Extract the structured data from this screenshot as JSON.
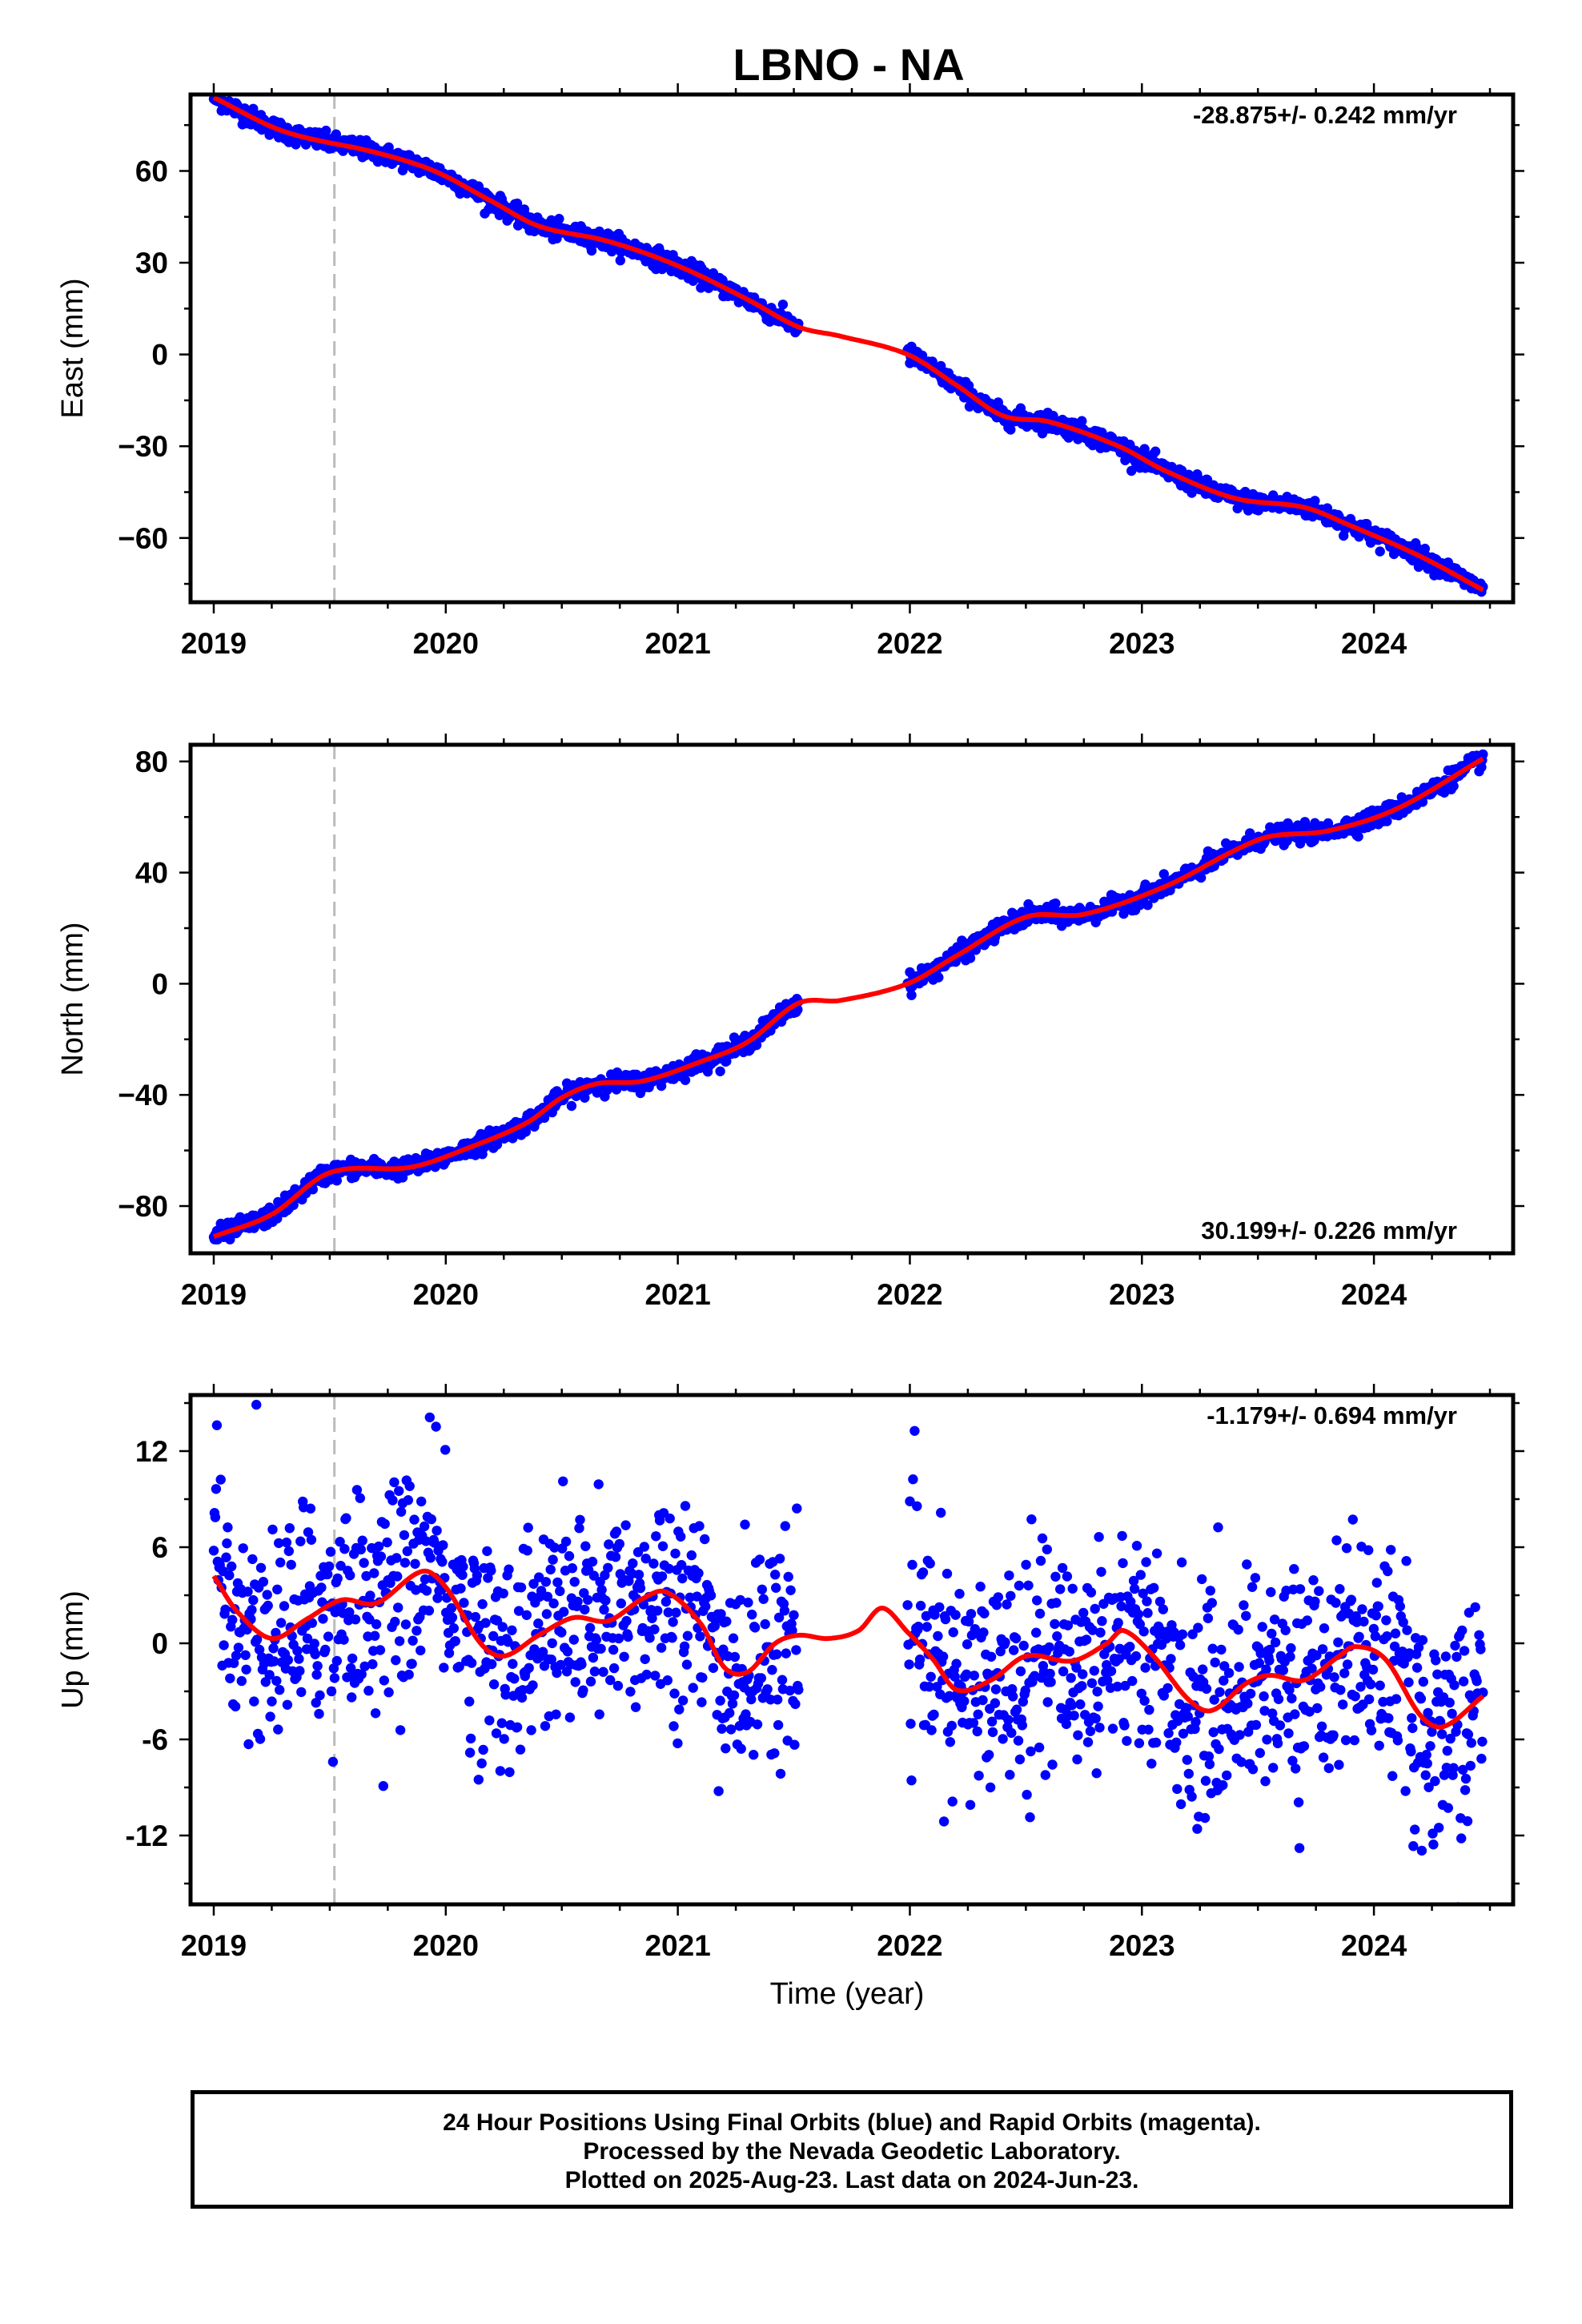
{
  "title": "LBNO - NA",
  "xlabel": "Time (year)",
  "x_ticks": [
    "2019",
    "2020",
    "2021",
    "2022",
    "2023",
    "2024"
  ],
  "footer": {
    "line1": "24 Hour Positions Using Final Orbits (blue) and Rapid Orbits (magenta).",
    "line2": "Processed by the Nevada Geodetic Laboratory.",
    "line3": "Plotted on 2025-Aug-23. Last data on 2024-Jun-23."
  },
  "colors": {
    "points": "#0000ff",
    "fit": "#ff0000",
    "equipment_change": "#bbbbbb",
    "frame": "#000000"
  },
  "chart_data": [
    {
      "type": "scatter",
      "ylabel": "East (mm)",
      "rate_label": "-28.875+/- 0.242 mm/yr",
      "rate_position": "top-right",
      "xlim": [
        2018.9,
        2024.6
      ],
      "ylim": [
        -81,
        85
      ],
      "yticks": [
        -60,
        -30,
        0,
        30,
        60
      ],
      "ytick_labels": [
        "−60",
        "−30",
        "0",
        "30",
        "60"
      ],
      "equipment_change_x": 2019.52,
      "data_gap": [
        2021.52,
        2021.99
      ],
      "fit_knots": [
        [
          2019.0,
          84
        ],
        [
          2019.3,
          73
        ],
        [
          2019.7,
          66
        ],
        [
          2019.95,
          60
        ],
        [
          2020.2,
          50
        ],
        [
          2020.4,
          42
        ],
        [
          2020.7,
          37
        ],
        [
          2021.0,
          29
        ],
        [
          2021.3,
          18
        ],
        [
          2021.52,
          9
        ],
        [
          2021.7,
          6
        ],
        [
          2021.99,
          0
        ],
        [
          2022.2,
          -10
        ],
        [
          2022.4,
          -20
        ],
        [
          2022.6,
          -22
        ],
        [
          2022.9,
          -30
        ],
        [
          2023.1,
          -38
        ],
        [
          2023.4,
          -47
        ],
        [
          2023.7,
          -50
        ],
        [
          2023.9,
          -56
        ],
        [
          2024.2,
          -66
        ],
        [
          2024.47,
          -77
        ]
      ],
      "noise_sd_mm": 1.5,
      "point_count": 1640
    },
    {
      "type": "scatter",
      "ylabel": "North (mm)",
      "rate_label": "30.199+/- 0.226 mm/yr",
      "rate_position": "bottom-right",
      "xlim": [
        2018.9,
        2024.6
      ],
      "ylim": [
        -97,
        86
      ],
      "yticks": [
        -80,
        -40,
        0,
        40,
        80
      ],
      "ytick_labels": [
        "−80",
        "−40",
        "0",
        "40",
        "80"
      ],
      "equipment_change_x": 2019.52,
      "data_gap": [
        2021.52,
        2021.99
      ],
      "fit_knots": [
        [
          2019.0,
          -91
        ],
        [
          2019.25,
          -83
        ],
        [
          2019.5,
          -68
        ],
        [
          2019.85,
          -66
        ],
        [
          2020.1,
          -59
        ],
        [
          2020.35,
          -50
        ],
        [
          2020.5,
          -41
        ],
        [
          2020.65,
          -36
        ],
        [
          2020.85,
          -35
        ],
        [
          2021.1,
          -28
        ],
        [
          2021.3,
          -21
        ],
        [
          2021.52,
          -7
        ],
        [
          2021.7,
          -6
        ],
        [
          2021.99,
          0
        ],
        [
          2022.2,
          10
        ],
        [
          2022.5,
          24
        ],
        [
          2022.75,
          25
        ],
        [
          2023.1,
          35
        ],
        [
          2023.4,
          48
        ],
        [
          2023.55,
          53
        ],
        [
          2023.8,
          55
        ],
        [
          2024.1,
          63
        ],
        [
          2024.47,
          81
        ]
      ],
      "noise_sd_mm": 1.6,
      "point_count": 1640
    },
    {
      "type": "scatter",
      "ylabel": "Up (mm)",
      "rate_label": "-1.179+/- 0.694 mm/yr",
      "rate_position": "top-right",
      "xlim": [
        2018.9,
        2024.6
      ],
      "ylim": [
        -16.3,
        15.5
      ],
      "yticks": [
        -12,
        -6,
        0,
        6,
        12
      ],
      "ytick_labels": [
        "-12",
        "-6",
        "0",
        "6",
        "12"
      ],
      "equipment_change_x": 2019.52,
      "data_gap": [
        2021.52,
        2021.99
      ],
      "fit_knots": [
        [
          2019.0,
          4.2
        ],
        [
          2019.1,
          2
        ],
        [
          2019.25,
          0.3
        ],
        [
          2019.4,
          1.5
        ],
        [
          2019.55,
          2.7
        ],
        [
          2019.7,
          2.5
        ],
        [
          2019.9,
          4.5
        ],
        [
          2020.0,
          3.5
        ],
        [
          2020.15,
          0
        ],
        [
          2020.25,
          -0.8
        ],
        [
          2020.4,
          0.5
        ],
        [
          2020.55,
          1.6
        ],
        [
          2020.7,
          1.4
        ],
        [
          2020.85,
          2.8
        ],
        [
          2020.95,
          3.2
        ],
        [
          2021.1,
          1.2
        ],
        [
          2021.2,
          -1.5
        ],
        [
          2021.3,
          -1.8
        ],
        [
          2021.42,
          0
        ],
        [
          2021.52,
          0.5
        ],
        [
          2021.65,
          0.3
        ],
        [
          2021.78,
          0.8
        ],
        [
          2021.88,
          2.2
        ],
        [
          2021.99,
          0.7
        ],
        [
          2022.1,
          -1
        ],
        [
          2022.2,
          -2.9
        ],
        [
          2022.35,
          -2.3
        ],
        [
          2022.5,
          -0.8
        ],
        [
          2022.7,
          -1.1
        ],
        [
          2022.85,
          0
        ],
        [
          2022.92,
          0.8
        ],
        [
          2023.05,
          -0.8
        ],
        [
          2023.2,
          -3.5
        ],
        [
          2023.3,
          -4.2
        ],
        [
          2023.45,
          -2.5
        ],
        [
          2023.55,
          -2
        ],
        [
          2023.7,
          -2.3
        ],
        [
          2023.85,
          -0.8
        ],
        [
          2023.92,
          -0.2
        ],
        [
          2024.05,
          -1
        ],
        [
          2024.2,
          -4.5
        ],
        [
          2024.3,
          -5.2
        ],
        [
          2024.47,
          -3.3
        ]
      ],
      "noise_sd_mm": 3.4,
      "point_count": 1640
    }
  ]
}
